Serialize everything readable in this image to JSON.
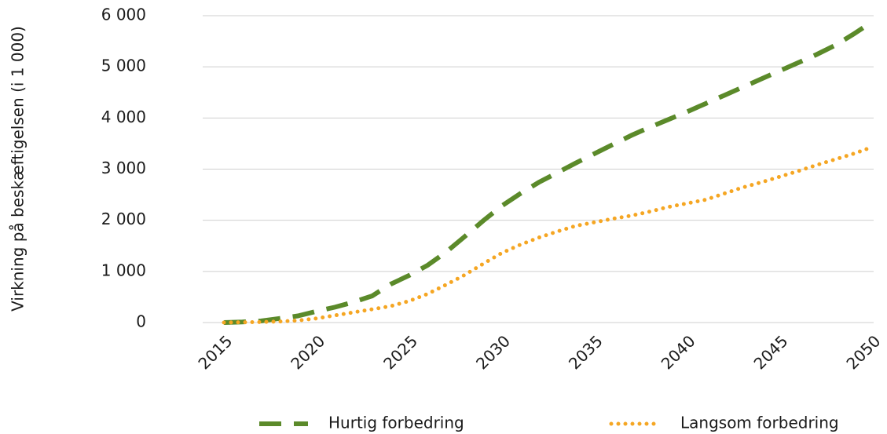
{
  "chart_data": {
    "type": "line",
    "y_label": "Virkning på beskæftigelsen (i 1 000)",
    "x": [
      2015,
      2016,
      2017,
      2018,
      2019,
      2020,
      2021,
      2022,
      2023,
      2024,
      2025,
      2026,
      2027,
      2028,
      2029,
      2030,
      2031,
      2032,
      2033,
      2034,
      2035,
      2036,
      2037,
      2038,
      2039,
      2040,
      2041,
      2042,
      2043,
      2044,
      2045,
      2046,
      2047,
      2048,
      2049,
      2050
    ],
    "series": [
      {
        "name": "Hurtig forbedring",
        "color": "#5b8a2a",
        "style": "dashed",
        "values": [
          0,
          10,
          30,
          80,
          130,
          220,
          300,
          400,
          520,
          750,
          920,
          1120,
          1380,
          1680,
          1990,
          2280,
          2520,
          2740,
          2930,
          3120,
          3300,
          3480,
          3660,
          3820,
          3970,
          4120,
          4280,
          4440,
          4600,
          4760,
          4920,
          5080,
          5240,
          5420,
          5640,
          5880
        ]
      },
      {
        "name": "Langsom forbedring",
        "color": "#f5a623",
        "style": "dotted",
        "values": [
          0,
          5,
          10,
          20,
          40,
          80,
          140,
          200,
          260,
          320,
          420,
          560,
          740,
          930,
          1150,
          1360,
          1520,
          1660,
          1780,
          1890,
          1960,
          2030,
          2090,
          2170,
          2260,
          2330,
          2400,
          2520,
          2640,
          2740,
          2850,
          2960,
          3080,
          3190,
          3300,
          3430
        ]
      }
    ],
    "xlim": [
      2015,
      2050
    ],
    "xticks": [
      2015,
      2020,
      2025,
      2030,
      2035,
      2040,
      2045,
      2050
    ],
    "ylim": [
      0,
      6000
    ],
    "yticks": [
      {
        "value": 0,
        "label": "0"
      },
      {
        "value": 1000,
        "label": "1 000"
      },
      {
        "value": 2000,
        "label": "2 000"
      },
      {
        "value": 3000,
        "label": "3 000"
      },
      {
        "value": 4000,
        "label": "4 000"
      },
      {
        "value": 5000,
        "label": "5 000"
      },
      {
        "value": 6000,
        "label": "6 000"
      }
    ],
    "grid": true
  }
}
